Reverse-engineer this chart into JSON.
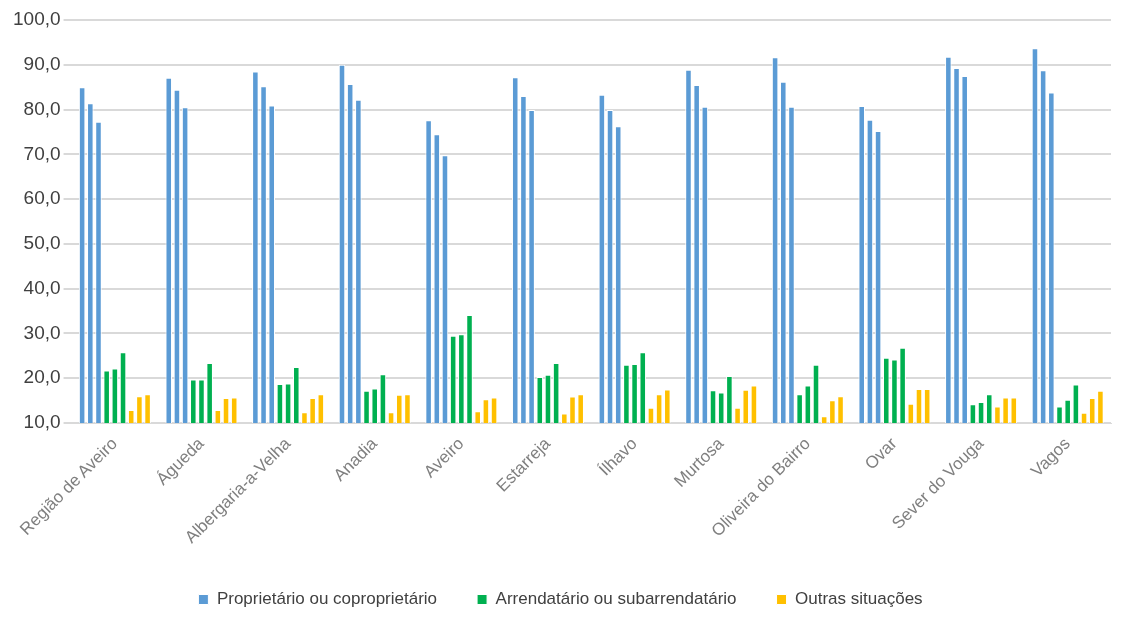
{
  "chart_data": {
    "type": "bar",
    "categories": [
      "Região de Aveiro",
      "Águeda",
      "Albergaria-a-Velha",
      "Anadia",
      "Aveiro",
      "Estarreja",
      "Ílhavo",
      "Murtosa",
      "Oliveira do Bairro",
      "Ovar",
      "Sever do Vouga",
      "Vagos"
    ],
    "series": [
      {
        "name": "Proprietário ou coproprietário",
        "color": "#5b9bd5",
        "values": [
          85.0,
          87.1,
          88.5,
          90.0,
          77.6,
          87.2,
          83.3,
          88.9,
          91.7,
          80.8,
          91.8,
          93.7
        ]
      },
      {
        "color": "#5b9bd5",
        "values": [
          81.4,
          84.4,
          85.2,
          85.7,
          74.5,
          83.0,
          79.9,
          85.5,
          86.2,
          77.7,
          89.3,
          88.8
        ]
      },
      {
        "color": "#5b9bd5",
        "values": [
          77.3,
          80.5,
          80.9,
          82.2,
          69.8,
          79.9,
          76.3,
          80.6,
          80.6,
          75.2,
          87.5,
          83.8
        ]
      },
      {
        "name": "Arrendatário ou subarrendatário",
        "color": "#00b050",
        "values": [
          21.7,
          19.7,
          18.7,
          17.2,
          29.5,
          20.3,
          23.0,
          17.3,
          16.4,
          24.6,
          14.2,
          13.7
        ]
      },
      {
        "color": "#00b050",
        "values": [
          22.2,
          19.7,
          18.8,
          17.7,
          29.8,
          20.8,
          23.2,
          16.8,
          18.4,
          24.2,
          14.7,
          15.2
        ]
      },
      {
        "color": "#00b050",
        "values": [
          25.8,
          23.4,
          22.5,
          20.9,
          34.1,
          23.4,
          25.8,
          20.5,
          23.0,
          26.8,
          16.4,
          18.6
        ]
      },
      {
        "name": "Outras situações",
        "color": "#ffc000",
        "values": [
          12.9,
          12.9,
          12.4,
          12.4,
          12.6,
          12.1,
          13.4,
          13.4,
          11.5,
          14.3,
          13.7,
          12.3
        ]
      },
      {
        "color": "#ffc000",
        "values": [
          16.0,
          15.6,
          15.6,
          16.3,
          15.3,
          15.9,
          16.4,
          17.4,
          15.1,
          17.6,
          15.7,
          15.6
        ]
      },
      {
        "color": "#ffc000",
        "values": [
          16.4,
          15.7,
          16.4,
          16.4,
          15.7,
          16.4,
          17.5,
          18.4,
          16.0,
          17.6,
          15.7,
          17.2
        ]
      }
    ],
    "ylim": [
      10,
      100
    ],
    "yticks": [
      {
        "value": 10,
        "label": "10,0"
      },
      {
        "value": 20,
        "label": "20,0"
      },
      {
        "value": 30,
        "label": "30,0"
      },
      {
        "value": 40,
        "label": "40,0"
      },
      {
        "value": 50,
        "label": "50,0"
      },
      {
        "value": 60,
        "label": "60,0"
      },
      {
        "value": 70,
        "label": "70,0"
      },
      {
        "value": 80,
        "label": "80,0"
      },
      {
        "value": 90,
        "label": "90,0"
      },
      {
        "value": 100,
        "label": "100,0"
      }
    ],
    "grid": "y",
    "legend": "bottom"
  }
}
